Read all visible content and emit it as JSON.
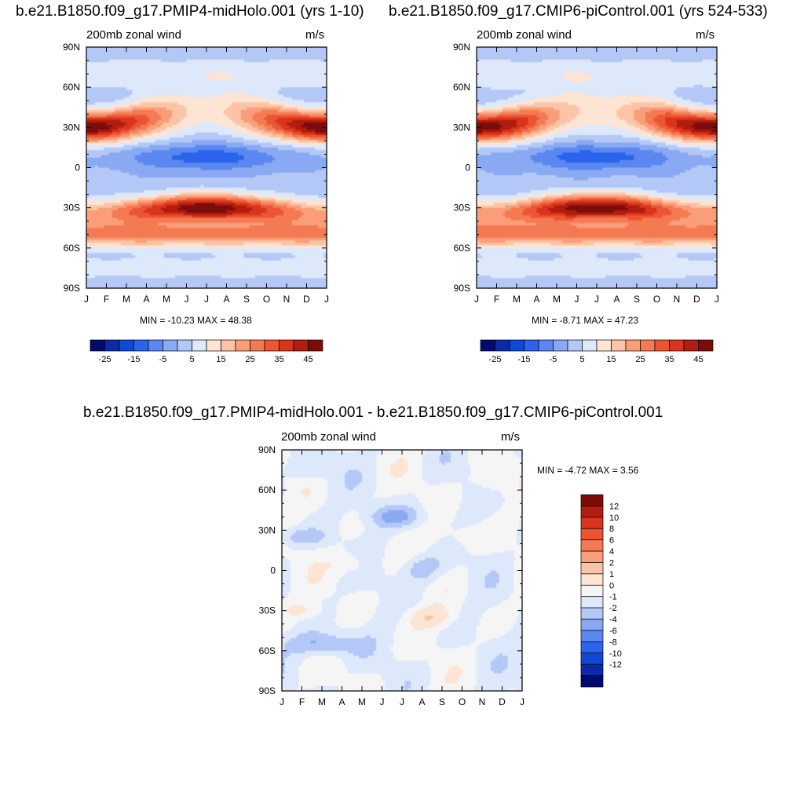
{
  "chart_data": [
    {
      "type": "heatmap",
      "title": "b.e21.B1850.f09_g17.PMIP4-midHolo.001 (yrs 1-10)",
      "left_label": "200mb zonal wind",
      "units": "m/s",
      "x_ticks": [
        "J",
        "F",
        "M",
        "A",
        "M",
        "J",
        "J",
        "A",
        "S",
        "O",
        "N",
        "D",
        "J"
      ],
      "y_ticks": [
        "90N",
        "60N",
        "30N",
        "0",
        "30S",
        "60S",
        "90S"
      ],
      "ylim": [
        -90,
        90
      ],
      "min": -10.23,
      "max": 48.38,
      "minmax_text": "MIN = -10.23 MAX =  48.38",
      "colorbar_ticks": [
        "-25",
        "-15",
        "-5",
        "5",
        "15",
        "25",
        "35",
        "45"
      ],
      "colorbar_orientation": "horizontal",
      "colorbar_levels": [
        -30,
        -25,
        -20,
        -15,
        -10,
        -5,
        0,
        5,
        10,
        15,
        20,
        25,
        30,
        35,
        40,
        45,
        50
      ]
    },
    {
      "type": "heatmap",
      "title": "b.e21.B1850.f09_g17.CMIP6-piControl.001 (yrs 524-533)",
      "left_label": "200mb zonal wind",
      "units": "m/s",
      "x_ticks": [
        "J",
        "F",
        "M",
        "A",
        "M",
        "J",
        "J",
        "A",
        "S",
        "O",
        "N",
        "D",
        "J"
      ],
      "y_ticks": [
        "90N",
        "60N",
        "30N",
        "0",
        "30S",
        "60S",
        "90S"
      ],
      "ylim": [
        -90,
        90
      ],
      "min": -8.71,
      "max": 47.23,
      "minmax_text": "MIN =  -8.71 MAX =  47.23",
      "colorbar_ticks": [
        "-25",
        "-15",
        "-5",
        "5",
        "15",
        "25",
        "35",
        "45"
      ],
      "colorbar_orientation": "horizontal",
      "colorbar_levels": [
        -30,
        -25,
        -20,
        -15,
        -10,
        -5,
        0,
        5,
        10,
        15,
        20,
        25,
        30,
        35,
        40,
        45,
        50
      ]
    },
    {
      "type": "heatmap",
      "title": "b.e21.B1850.f09_g17.PMIP4-midHolo.001 - b.e21.B1850.f09_g17.CMIP6-piControl.001",
      "left_label": "200mb zonal wind",
      "units": "m/s",
      "x_ticks": [
        "J",
        "F",
        "M",
        "A",
        "M",
        "J",
        "J",
        "A",
        "S",
        "O",
        "N",
        "D",
        "J"
      ],
      "y_ticks": [
        "90N",
        "60N",
        "30N",
        "0",
        "30S",
        "60S",
        "90S"
      ],
      "ylim": [
        -90,
        90
      ],
      "min": -4.72,
      "max": 3.56,
      "minmax_text": "MIN =  -4.72 MAX =   3.56",
      "colorbar_ticks": [
        "12",
        "10",
        "8",
        "6",
        "4",
        "2",
        "1",
        "0",
        "-1",
        "-2",
        "-4",
        "-6",
        "-8",
        "-10",
        "-12"
      ],
      "colorbar_orientation": "vertical"
    }
  ],
  "palettes": {
    "full": [
      "#020a6e",
      "#0a2aa8",
      "#0f48d4",
      "#2c63ec",
      "#5a87f0",
      "#89a9f3",
      "#b4c8f7",
      "#dde8fb",
      "#fde4d3",
      "#fcc4a6",
      "#f99e78",
      "#f47a52",
      "#ec5530",
      "#d9341c",
      "#b21d11",
      "#7d0c09"
    ],
    "diff": [
      "#7d0c09",
      "#b21d11",
      "#d9341c",
      "#ec5530",
      "#f47a52",
      "#f99e78",
      "#fcc4a6",
      "#fde4d3",
      "#f5f5f5",
      "#dde8fb",
      "#b4c8f7",
      "#89a9f3",
      "#5a87f0",
      "#2c63ec",
      "#0f48d4",
      "#0a2aa8",
      "#020a6e"
    ]
  }
}
